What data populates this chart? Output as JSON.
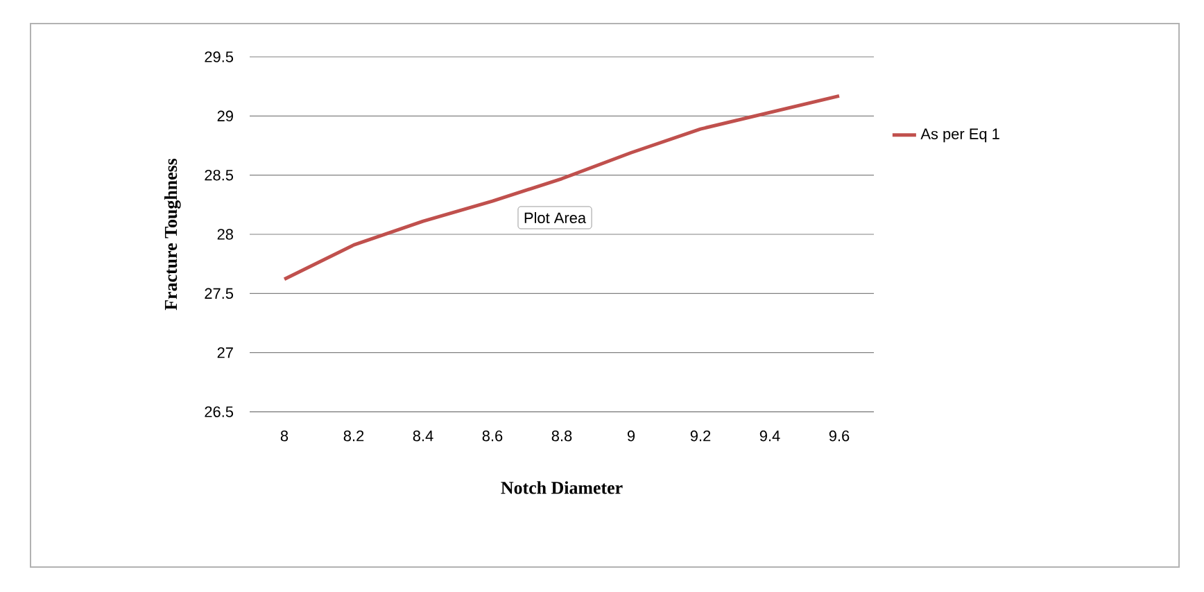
{
  "chart_data": {
    "type": "line",
    "xlabel": "Notch Diameter",
    "ylabel": "Fracture Toughness",
    "categories": [
      "8",
      "8.2",
      "8.4",
      "8.6",
      "8.8",
      "9",
      "9.2",
      "9.4",
      "9.6"
    ],
    "series": [
      {
        "name": "As per Eq 1",
        "color": "#c0504d",
        "values": [
          27.62,
          27.91,
          28.11,
          28.28,
          28.47,
          28.69,
          28.89,
          29.03,
          29.17
        ]
      }
    ],
    "ylim": [
      26.5,
      29.5
    ],
    "yticks": [
      26.5,
      27,
      27.5,
      28,
      28.5,
      29,
      29.5
    ],
    "grid": "y",
    "legend": "right",
    "marker": "none",
    "line_style": "solid",
    "annotations": [
      "Plot Area"
    ]
  }
}
